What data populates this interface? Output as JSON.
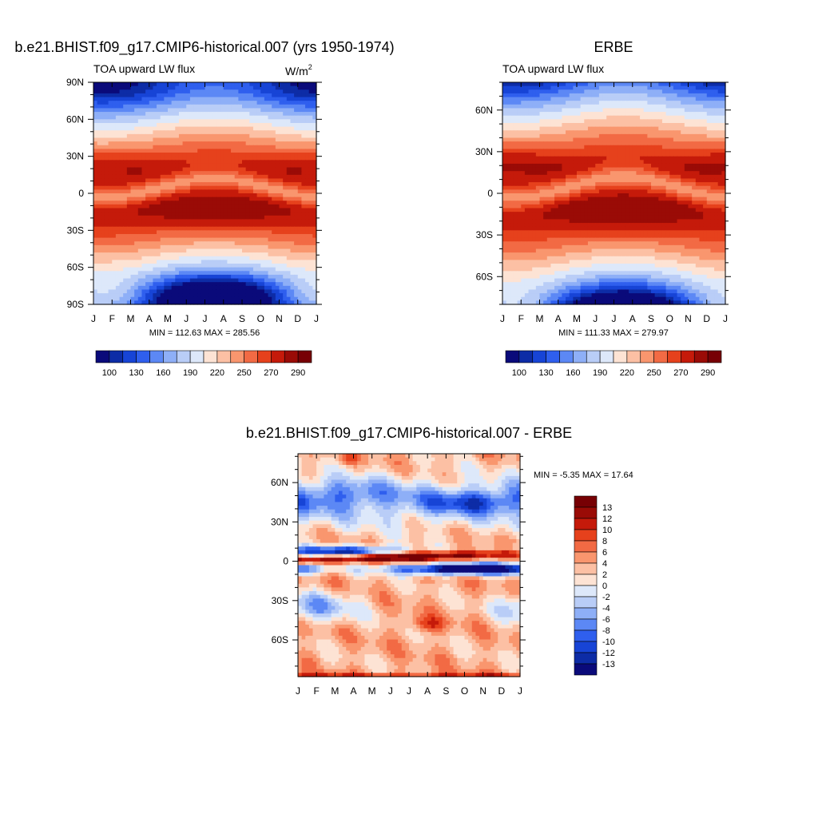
{
  "chart_data": [
    {
      "type": "heatmap",
      "title": "b.e21.BHIST.f09_g17.CMIP6-historical.007 (yrs 1950-1974)",
      "subtitle": "TOA upward LW flux",
      "units": "W/m",
      "units_sup": "2",
      "x_tick_labels": [
        "J",
        "F",
        "M",
        "A",
        "M",
        "J",
        "J",
        "A",
        "S",
        "O",
        "N",
        "D",
        "J"
      ],
      "y_tick_labels": [
        "90N",
        "60N",
        "30N",
        "0",
        "30S",
        "60S",
        "90S"
      ],
      "stats_text": "MIN = 112.63 MAX = 285.56",
      "colorbar_labels": [
        "100",
        "130",
        "160",
        "190",
        "220",
        "250",
        "270",
        "290"
      ],
      "colorbar_colors": [
        "#0a0a7a",
        "#0d2ca6",
        "#1744d6",
        "#2f5fee",
        "#5c88f5",
        "#8eaff7",
        "#b9cdf7",
        "#dde8fa",
        "#fde3d4",
        "#fcc0a4",
        "#f9966e",
        "#f26a44",
        "#e6411c",
        "#c51a0a",
        "#9a0b06",
        "#770004"
      ],
      "zlim": [
        112.63,
        285.56
      ]
    },
    {
      "type": "heatmap",
      "title": "ERBE",
      "subtitle": "TOA upward LW flux",
      "x_tick_labels": [
        "J",
        "F",
        "M",
        "A",
        "M",
        "J",
        "J",
        "A",
        "S",
        "O",
        "N",
        "D",
        "J"
      ],
      "y_tick_labels": [
        "60N",
        "30N",
        "0",
        "30S",
        "60S"
      ],
      "stats_text": "MIN = 111.33 MAX = 279.97",
      "colorbar_labels": [
        "100",
        "130",
        "160",
        "190",
        "220",
        "250",
        "270",
        "290"
      ],
      "colorbar_colors": [
        "#0a0a7a",
        "#0d2ca6",
        "#1744d6",
        "#2f5fee",
        "#5c88f5",
        "#8eaff7",
        "#b9cdf7",
        "#dde8fa",
        "#fde3d4",
        "#fcc0a4",
        "#f9966e",
        "#f26a44",
        "#e6411c",
        "#c51a0a",
        "#9a0b06",
        "#770004"
      ],
      "zlim": [
        111.33,
        279.97
      ]
    },
    {
      "type": "heatmap",
      "title": "b.e21.BHIST.f09_g17.CMIP6-historical.007 - ERBE",
      "x_tick_labels": [
        "J",
        "F",
        "M",
        "A",
        "M",
        "J",
        "J",
        "A",
        "S",
        "O",
        "N",
        "D",
        "J"
      ],
      "y_tick_labels": [
        "60N",
        "30N",
        "0",
        "30S",
        "60S"
      ],
      "stats_text": "MIN =  -5.35 MAX =  17.64",
      "colorbar_labels": [
        "13",
        "12",
        "10",
        "8",
        "6",
        "4",
        "2",
        "0",
        "-2",
        "-4",
        "-6",
        "-8",
        "-10",
        "-12",
        "-13"
      ],
      "colorbar_colors": [
        "#770004",
        "#9a0b06",
        "#c51a0a",
        "#e6411c",
        "#f26a44",
        "#f9966e",
        "#fcc0a4",
        "#fde3d4",
        "#dde8fa",
        "#b9cdf7",
        "#8eaff7",
        "#5c88f5",
        "#2f5fee",
        "#1744d6",
        "#0d2ca6",
        "#0a0a7a"
      ],
      "zlim": [
        -5.35,
        17.64
      ]
    }
  ]
}
